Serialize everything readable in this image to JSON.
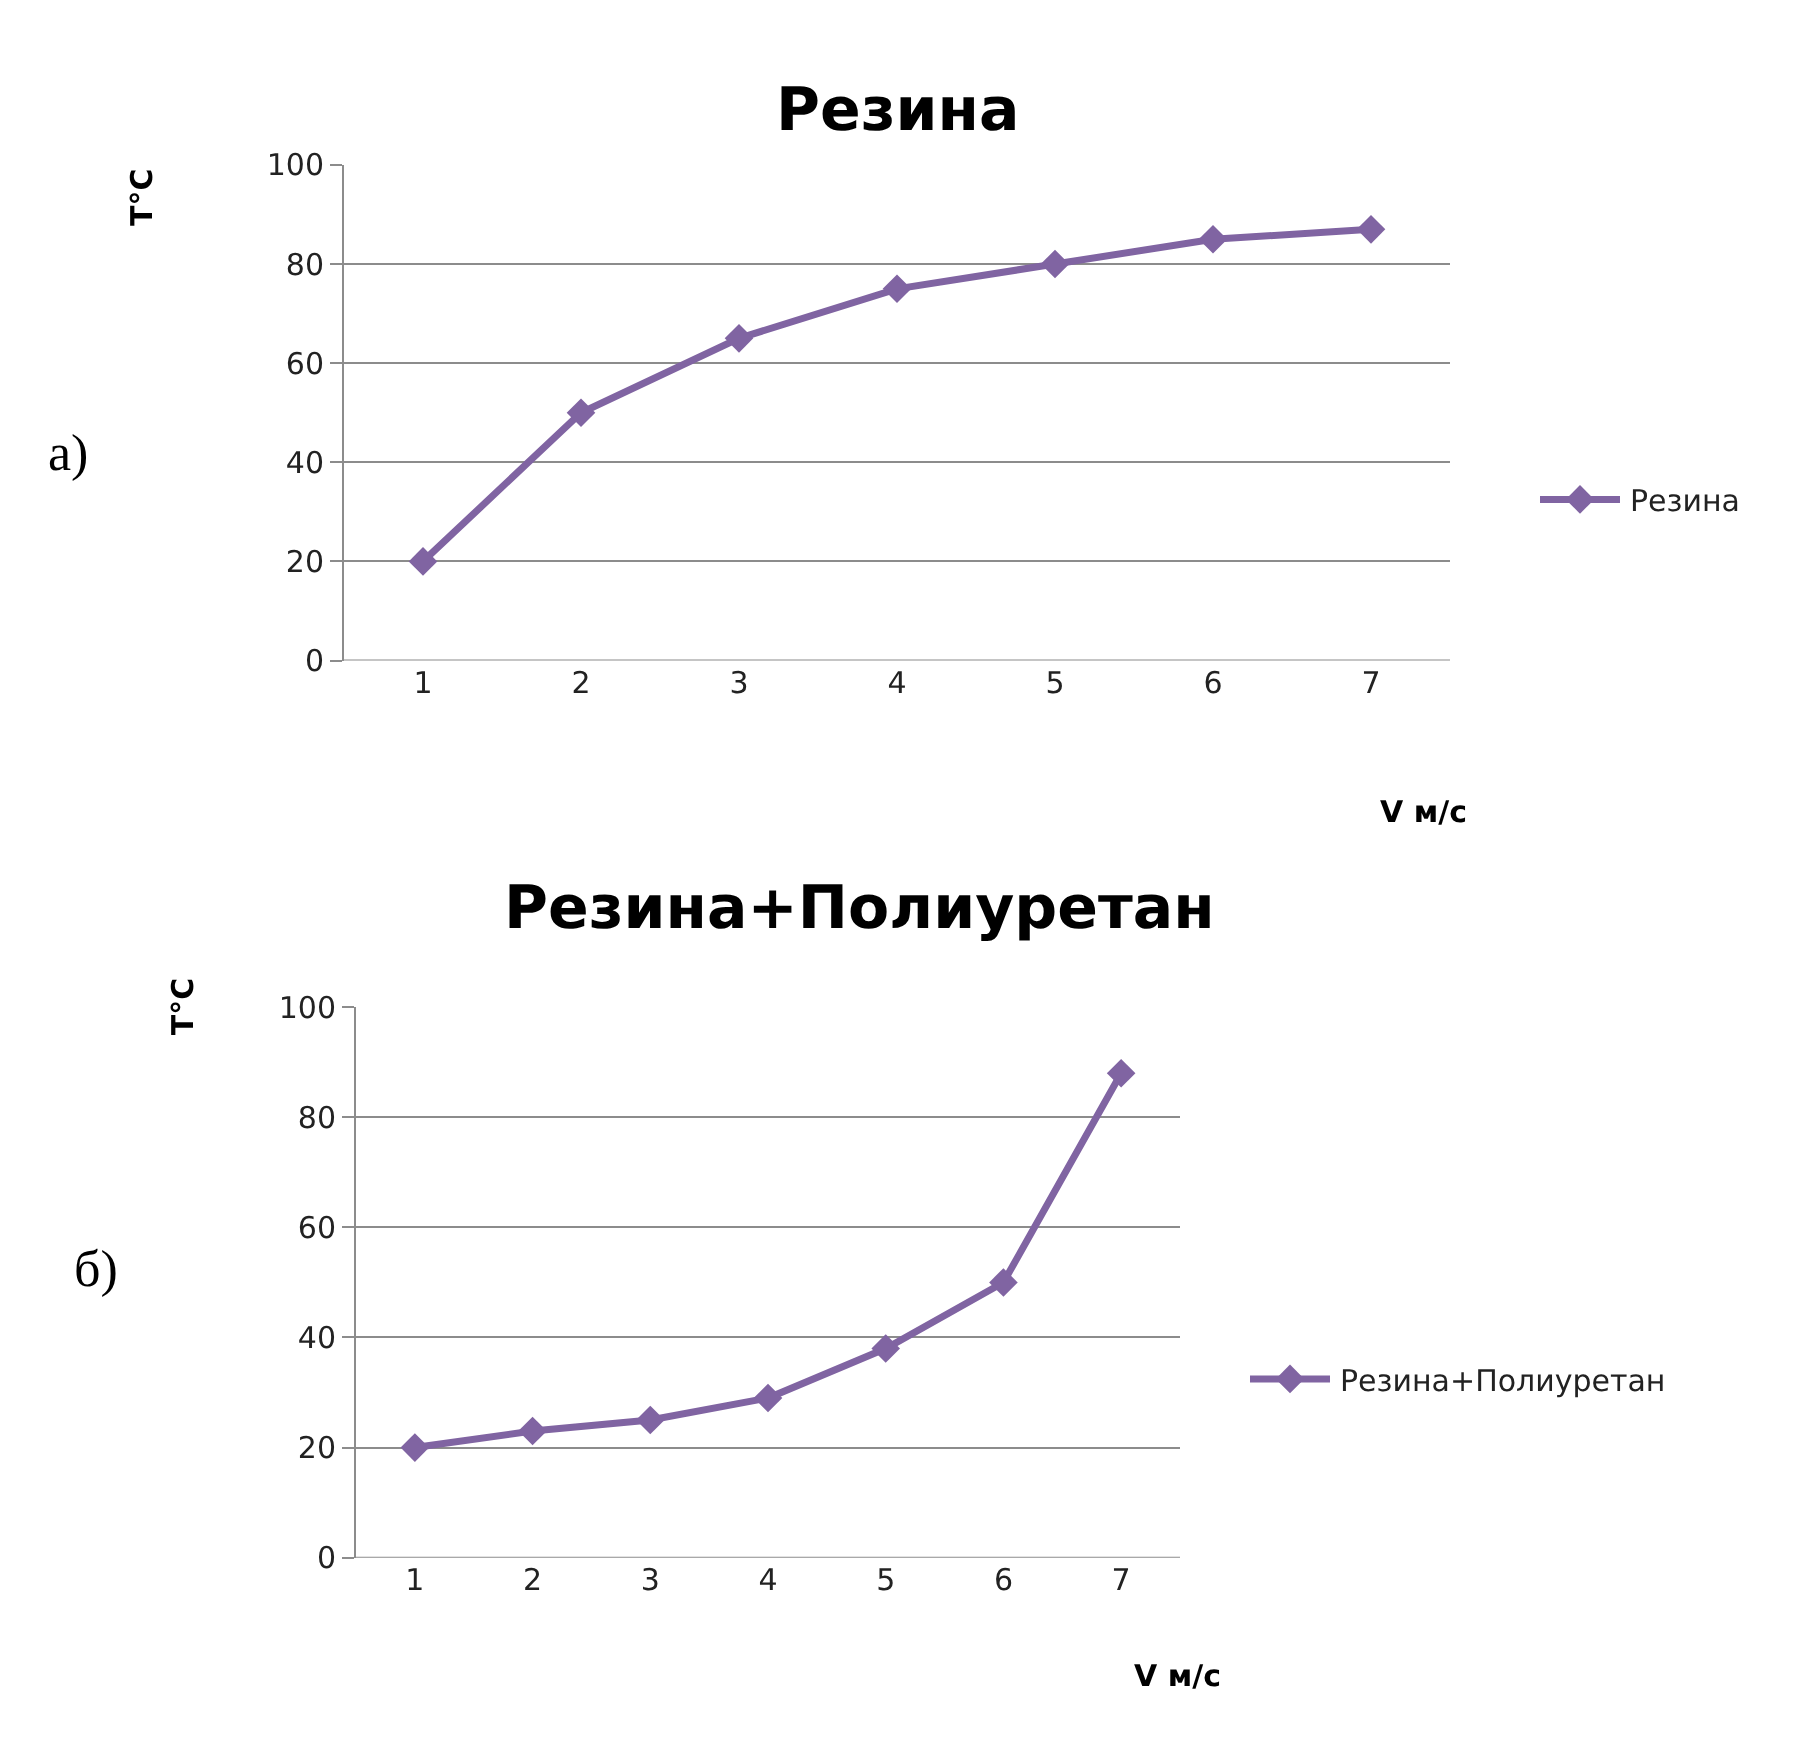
{
  "chart_data": [
    {
      "type": "line",
      "title": "Резина",
      "xlabel": "V м/с",
      "ylabel": "T°C",
      "annotations": [
        "а)"
      ],
      "categories": [
        "1",
        "2",
        "3",
        "4",
        "5",
        "6",
        "7"
      ],
      "series": [
        {
          "name": "Резина",
          "color": "#8064a2",
          "values": [
            20,
            50,
            65,
            75,
            80,
            85,
            87
          ]
        }
      ],
      "ylim": [
        0,
        100
      ],
      "yticks": [
        0,
        20,
        40,
        60,
        80,
        100
      ],
      "grid": "y",
      "legend": "right",
      "marker": "diamond",
      "line_style": "solid"
    },
    {
      "type": "line",
      "title": "Резина+Полиуретан",
      "xlabel": "V м/с",
      "ylabel": "T°C",
      "annotations": [
        "б)"
      ],
      "categories": [
        "1",
        "2",
        "3",
        "4",
        "5",
        "6",
        "7"
      ],
      "series": [
        {
          "name": "Резина+Полиуретан",
          "color": "#8064a2",
          "values": [
            20,
            23,
            25,
            29,
            38,
            50,
            88
          ]
        }
      ],
      "ylim": [
        0,
        100
      ],
      "yticks": [
        0,
        20,
        40,
        60,
        80,
        100
      ],
      "grid": "y",
      "legend": "right",
      "marker": "diamond",
      "line_style": "solid"
    }
  ]
}
